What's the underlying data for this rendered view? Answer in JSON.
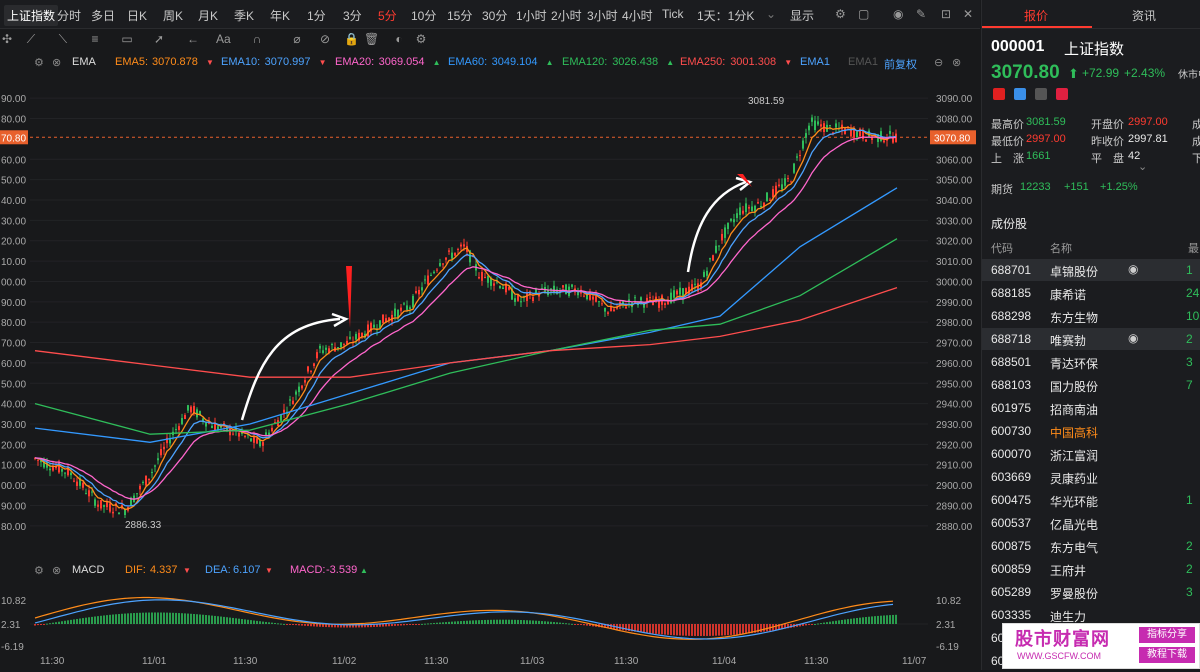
{
  "topbar": {
    "tabs": [
      "上证指数",
      "分时",
      "多日",
      "日K",
      "周K",
      "月K",
      "季K",
      "年K",
      "1分",
      "3分",
      "5分",
      "10分",
      "15分",
      "30分",
      "1小时",
      "2小时",
      "3小时",
      "4小时",
      "Tick",
      "1天：1分K"
    ],
    "active_tab": "5分",
    "display_label": "显示"
  },
  "toolbar": {
    "tools": [
      "crosshair",
      "line",
      "ray",
      "fib",
      "rect",
      "arrow",
      "back",
      "text",
      "magnet",
      "measure",
      "eraser",
      "lock",
      "trash",
      "visibility",
      "settings"
    ]
  },
  "ema_legend": {
    "indicator": "EMA",
    "items": [
      {
        "label": "EMA5:",
        "value": "3070.878",
        "color": "#ff8c1a",
        "arrow": "▼"
      },
      {
        "label": "EMA10:",
        "value": "3070.997",
        "color": "#4da3ff",
        "arrow": "▼"
      },
      {
        "label": "EMA20:",
        "value": "3069.054",
        "color": "#ff66cc",
        "arrow": "▲"
      },
      {
        "label": "EMA60:",
        "value": "3049.104",
        "color": "#3399ff",
        "arrow": "▲"
      },
      {
        "label": "EMA120:",
        "value": "3026.438",
        "color": "#2fbd5a",
        "arrow": "▲"
      },
      {
        "label": "EMA250:",
        "value": "3001.308",
        "color": "#ff4d4d",
        "arrow": "▼"
      },
      {
        "label": "EMA1",
        "value": "",
        "color": "#4da3ff",
        "arrow": ""
      },
      {
        "label": "EMA1",
        "value": "",
        "color": "#555555",
        "arrow": ""
      }
    ],
    "adjust_label": "前复权"
  },
  "price_axis": {
    "right": [
      "3090.00",
      "3080.00",
      "3070.80",
      "3060.00",
      "3050.00",
      "3040.00",
      "3030.00",
      "3020.00",
      "3010.00",
      "3000.00",
      "2990.00",
      "2980.00",
      "2970.00",
      "2960.00",
      "2950.00",
      "2940.00",
      "2930.00",
      "2920.00",
      "2910.00",
      "2900.00",
      "2890.00",
      "2880.00"
    ],
    "left": [
      "90.00",
      "80.00",
      "70.80",
      "60.00",
      "50.00",
      "40.00",
      "30.00",
      "20.00",
      "10.00",
      "00.00",
      "90.00",
      "80.00",
      "70.00",
      "60.00",
      "50.00",
      "40.00",
      "30.00",
      "20.00",
      "10.00",
      "00.00",
      "90.00",
      "80.00"
    ],
    "current": "3070.80"
  },
  "annotations": {
    "high": "3081.59",
    "low": "2886.33"
  },
  "macd_legend": {
    "indicator": "MACD",
    "dif_label": "DIF:",
    "dif": "4.337",
    "dif_arrow": "▼",
    "dea_label": "DEA:",
    "dea": "6.107",
    "dea_arrow": "▼",
    "macd_label": "MACD:",
    "macd": "-3.539",
    "macd_arrow": "▲"
  },
  "macd_axis": {
    "top": "10.82",
    "mid": "2.31",
    "bottom": "-6.19"
  },
  "x_axis": [
    "11:30",
    "11/01",
    "11:30",
    "11/02",
    "11:30",
    "11/03",
    "11:30",
    "11/04",
    "11:30",
    "11/07"
  ],
  "right_panel": {
    "tabs": [
      "报价",
      "资讯"
    ],
    "code": "000001",
    "name": "上证指数",
    "price": "3070.80",
    "change": "+72.99",
    "change_pct": "+2.43%",
    "status": "休市中",
    "stats": {
      "high_label": "最高价",
      "high": "3081.59",
      "open_label": "开盘价",
      "open": "2997.00",
      "low_label": "最低价",
      "low": "2997.00",
      "prev_label": "昨收价",
      "prev": "2997.81",
      "up_label": "上　涨",
      "up": "1661",
      "flat_label": "平　盘",
      "flat": "42",
      "c1": "成",
      "c2": "成",
      "c3": "下"
    },
    "futures": {
      "label": "期货",
      "value": "12233",
      "change": "+151",
      "pct": "+1.25%"
    },
    "constituents_title": "成份股",
    "col_code": "代码",
    "col_name": "名称",
    "col_val": "最",
    "stocks": [
      {
        "code": "688701",
        "name": "卓锦股份",
        "val": "1",
        "hl": true,
        "eye": true
      },
      {
        "code": "688185",
        "name": "康希诺",
        "val": "24"
      },
      {
        "code": "688298",
        "name": "东方生物",
        "val": "10"
      },
      {
        "code": "688718",
        "name": "唯赛勃",
        "val": "2",
        "hl": true,
        "eye": true
      },
      {
        "code": "688501",
        "name": "青达环保",
        "val": "3"
      },
      {
        "code": "688103",
        "name": "国力股份",
        "val": "7"
      },
      {
        "code": "601975",
        "name": "招商南油",
        "val": ""
      },
      {
        "code": "600730",
        "name": "中国高科",
        "val": "",
        "orange": true
      },
      {
        "code": "600070",
        "name": "浙江富润",
        "val": ""
      },
      {
        "code": "603669",
        "name": "灵康药业",
        "val": ""
      },
      {
        "code": "600475",
        "name": "华光环能",
        "val": "1"
      },
      {
        "code": "600537",
        "name": "亿晶光电",
        "val": ""
      },
      {
        "code": "600875",
        "name": "东方电气",
        "val": "2"
      },
      {
        "code": "600859",
        "name": "王府井",
        "val": "2"
      },
      {
        "code": "605289",
        "name": "罗曼股份",
        "val": "3"
      },
      {
        "code": "603335",
        "name": "迪生力",
        "val": ""
      },
      {
        "code": "605",
        "name": "",
        "val": ""
      },
      {
        "code": "605",
        "name": "",
        "val": ""
      }
    ]
  },
  "watermark": {
    "title": "股市财富网",
    "url": "WWW.GSCFW.COM",
    "btn1": "指标分享",
    "btn2": "教程下载"
  }
}
